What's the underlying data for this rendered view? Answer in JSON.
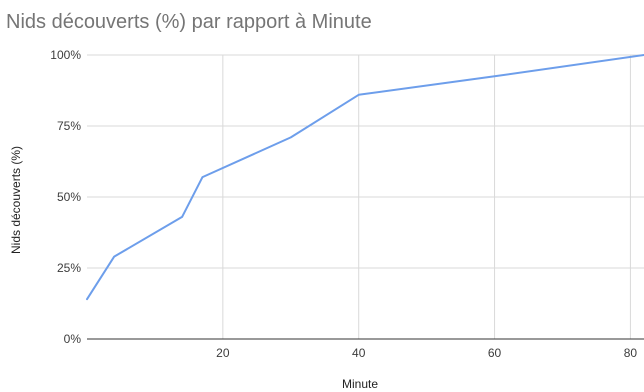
{
  "chart_data": {
    "type": "line",
    "title": "Nids découverts (%) par rapport à Minute",
    "xlabel": "Minute",
    "ylabel": "Nids découverts (%)",
    "xlim": [
      0,
      82
    ],
    "ylim": [
      0,
      100
    ],
    "x_ticks": [
      20,
      40,
      60,
      80
    ],
    "x_tick_labels": [
      "20",
      "40",
      "60",
      "80"
    ],
    "y_ticks": [
      0,
      25,
      50,
      75,
      100
    ],
    "y_tick_labels": [
      "0%",
      "25%",
      "50%",
      "75%",
      "100%"
    ],
    "grid": true,
    "series": [
      {
        "color": "#6d9eeb",
        "points": [
          {
            "x": 0,
            "y": 14
          },
          {
            "x": 4,
            "y": 29
          },
          {
            "x": 14,
            "y": 43
          },
          {
            "x": 17,
            "y": 57
          },
          {
            "x": 30,
            "y": 71
          },
          {
            "x": 40,
            "y": 86
          },
          {
            "x": 60,
            "y": 92.5
          },
          {
            "x": 82,
            "y": 100
          }
        ]
      }
    ]
  }
}
